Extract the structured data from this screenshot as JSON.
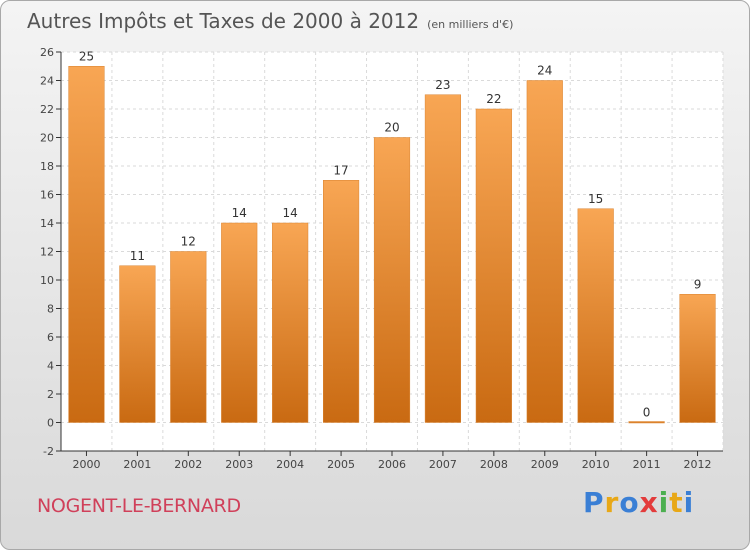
{
  "title": "Autres Impôts et Taxes de 2000 à 2012",
  "unit_note": "(en milliers d'€)",
  "commune": "NOGENT-LE-BERNARD",
  "logo": {
    "letters": [
      "P",
      "r",
      "o",
      "x",
      "i",
      "t",
      "i"
    ],
    "colors": [
      "#3a7fd5",
      "#e8a817",
      "#3a7fd5",
      "#e33b3b",
      "#4caf50",
      "#e8a817",
      "#3a7fd5"
    ]
  },
  "colors": {
    "bar_top": "#f8a654",
    "bar_bottom": "#c96a12",
    "axis": "#333333",
    "grid": "#dadada"
  },
  "chart_data": {
    "type": "bar",
    "categories": [
      "2000",
      "2001",
      "2002",
      "2003",
      "2004",
      "2005",
      "2006",
      "2007",
      "2008",
      "2009",
      "2010",
      "2011",
      "2012"
    ],
    "values": [
      25,
      11,
      12,
      14,
      14,
      17,
      20,
      23,
      22,
      24,
      15,
      0,
      9
    ],
    "ylim": [
      -2,
      26
    ],
    "yticks": [
      -2,
      0,
      2,
      4,
      6,
      8,
      10,
      12,
      14,
      16,
      18,
      20,
      22,
      24,
      26
    ],
    "grid": true
  }
}
